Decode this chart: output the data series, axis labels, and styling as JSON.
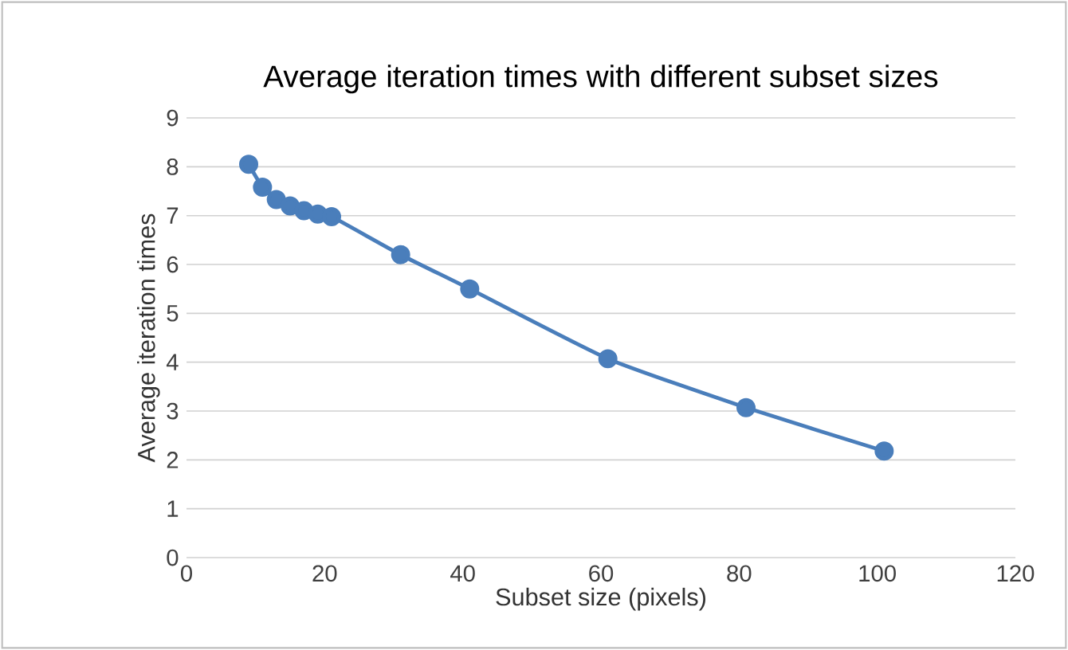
{
  "chart_data": {
    "type": "line",
    "title": "Average iteration times with different subset sizes",
    "xlabel": "Subset size (pixels)",
    "ylabel": "Average iteration times",
    "x": [
      9,
      11,
      13,
      15,
      17,
      19,
      21,
      31,
      41,
      61,
      81,
      101
    ],
    "series": [
      {
        "color": "#4a7ebb",
        "values": [
          8.05,
          7.58,
          7.33,
          7.2,
          7.1,
          7.03,
          6.98,
          6.2,
          5.5,
          4.07,
          3.07,
          2.18
        ]
      }
    ],
    "xlim": [
      0,
      120
    ],
    "xticks": [
      0,
      20,
      40,
      60,
      80,
      100,
      120
    ],
    "ylim": [
      0,
      9
    ],
    "yticks": [
      0,
      1,
      2,
      3,
      4,
      5,
      6,
      7,
      8,
      9
    ],
    "grid": "y",
    "marker": "circle",
    "line_style": "solid"
  }
}
